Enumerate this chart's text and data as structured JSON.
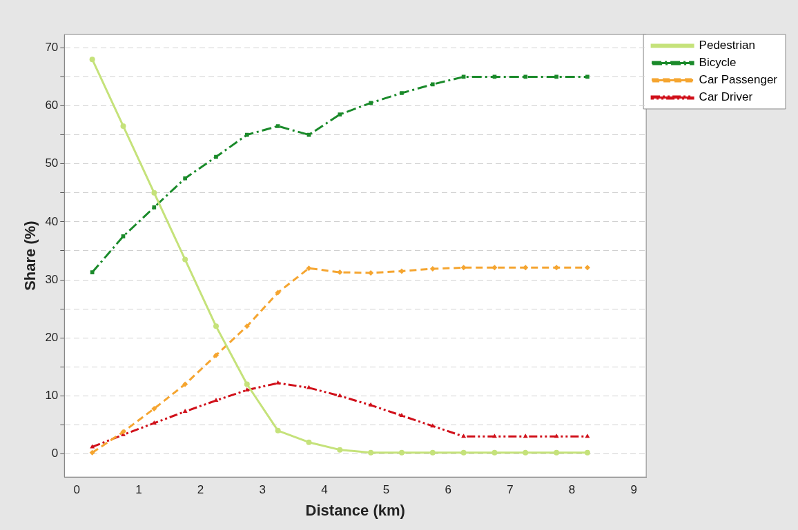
{
  "chart_data": {
    "type": "line",
    "xlabel": "Distance (km)",
    "ylabel": "Share (%)",
    "xlim": [
      -0.2,
      9.2
    ],
    "xticks": [
      0,
      1,
      2,
      3,
      4,
      5,
      6,
      7,
      8,
      9
    ],
    "ylim": [
      -4,
      72.3
    ],
    "yticks": [
      0,
      {
        "value": 5,
        "label": null
      },
      10,
      {
        "value": 15,
        "label": null
      },
      20,
      {
        "value": 25,
        "label": null
      },
      30,
      {
        "value": 35,
        "label": null
      },
      40,
      {
        "value": 45,
        "label": null
      },
      50,
      {
        "value": 55,
        "label": null
      },
      60,
      {
        "value": 65,
        "label": null
      },
      70
    ],
    "grid": "y",
    "legend": "right",
    "x": [
      0.25,
      0.75,
      1.25,
      1.75,
      2.25,
      2.75,
      3.25,
      3.75,
      4.25,
      4.75,
      5.25,
      5.75,
      6.25,
      6.75,
      7.25,
      7.75,
      8.25
    ],
    "series": [
      {
        "name": "Pedestrian",
        "color": "#c5e27a",
        "marker": "circle",
        "line_style": "solid",
        "values": [
          68,
          56.5,
          45,
          33.5,
          22,
          12,
          4,
          2,
          0.7,
          0.2,
          0.2,
          0.2,
          0.2,
          0.2,
          0.2,
          0.2,
          0.2
        ]
      },
      {
        "name": "Bicycle",
        "color": "#1a8a2a",
        "marker": "square",
        "line_style": "dashdot",
        "values": [
          31.3,
          37.5,
          42.5,
          47.5,
          51.2,
          55,
          56.5,
          55,
          58.5,
          60.5,
          62.2,
          63.7,
          65,
          65,
          65,
          65,
          65
        ]
      },
      {
        "name": "Car Passenger",
        "color": "#f5a530",
        "marker": "diamond",
        "line_style": "dashed",
        "values": [
          0.2,
          3.8,
          7.8,
          12,
          17,
          22,
          27.8,
          32,
          31.3,
          31.2,
          31.5,
          31.9,
          32.1,
          32.1,
          32.1,
          32.1,
          32.1
        ]
      },
      {
        "name": "Car Driver",
        "color": "#d0101a",
        "marker": "triangle",
        "line_style": "dashdotdot",
        "values": [
          1.2,
          3.3,
          5.3,
          7.3,
          9.2,
          11,
          12.2,
          11.4,
          10,
          8.4,
          6.6,
          4.8,
          3,
          3,
          3,
          3,
          3
        ]
      }
    ]
  }
}
